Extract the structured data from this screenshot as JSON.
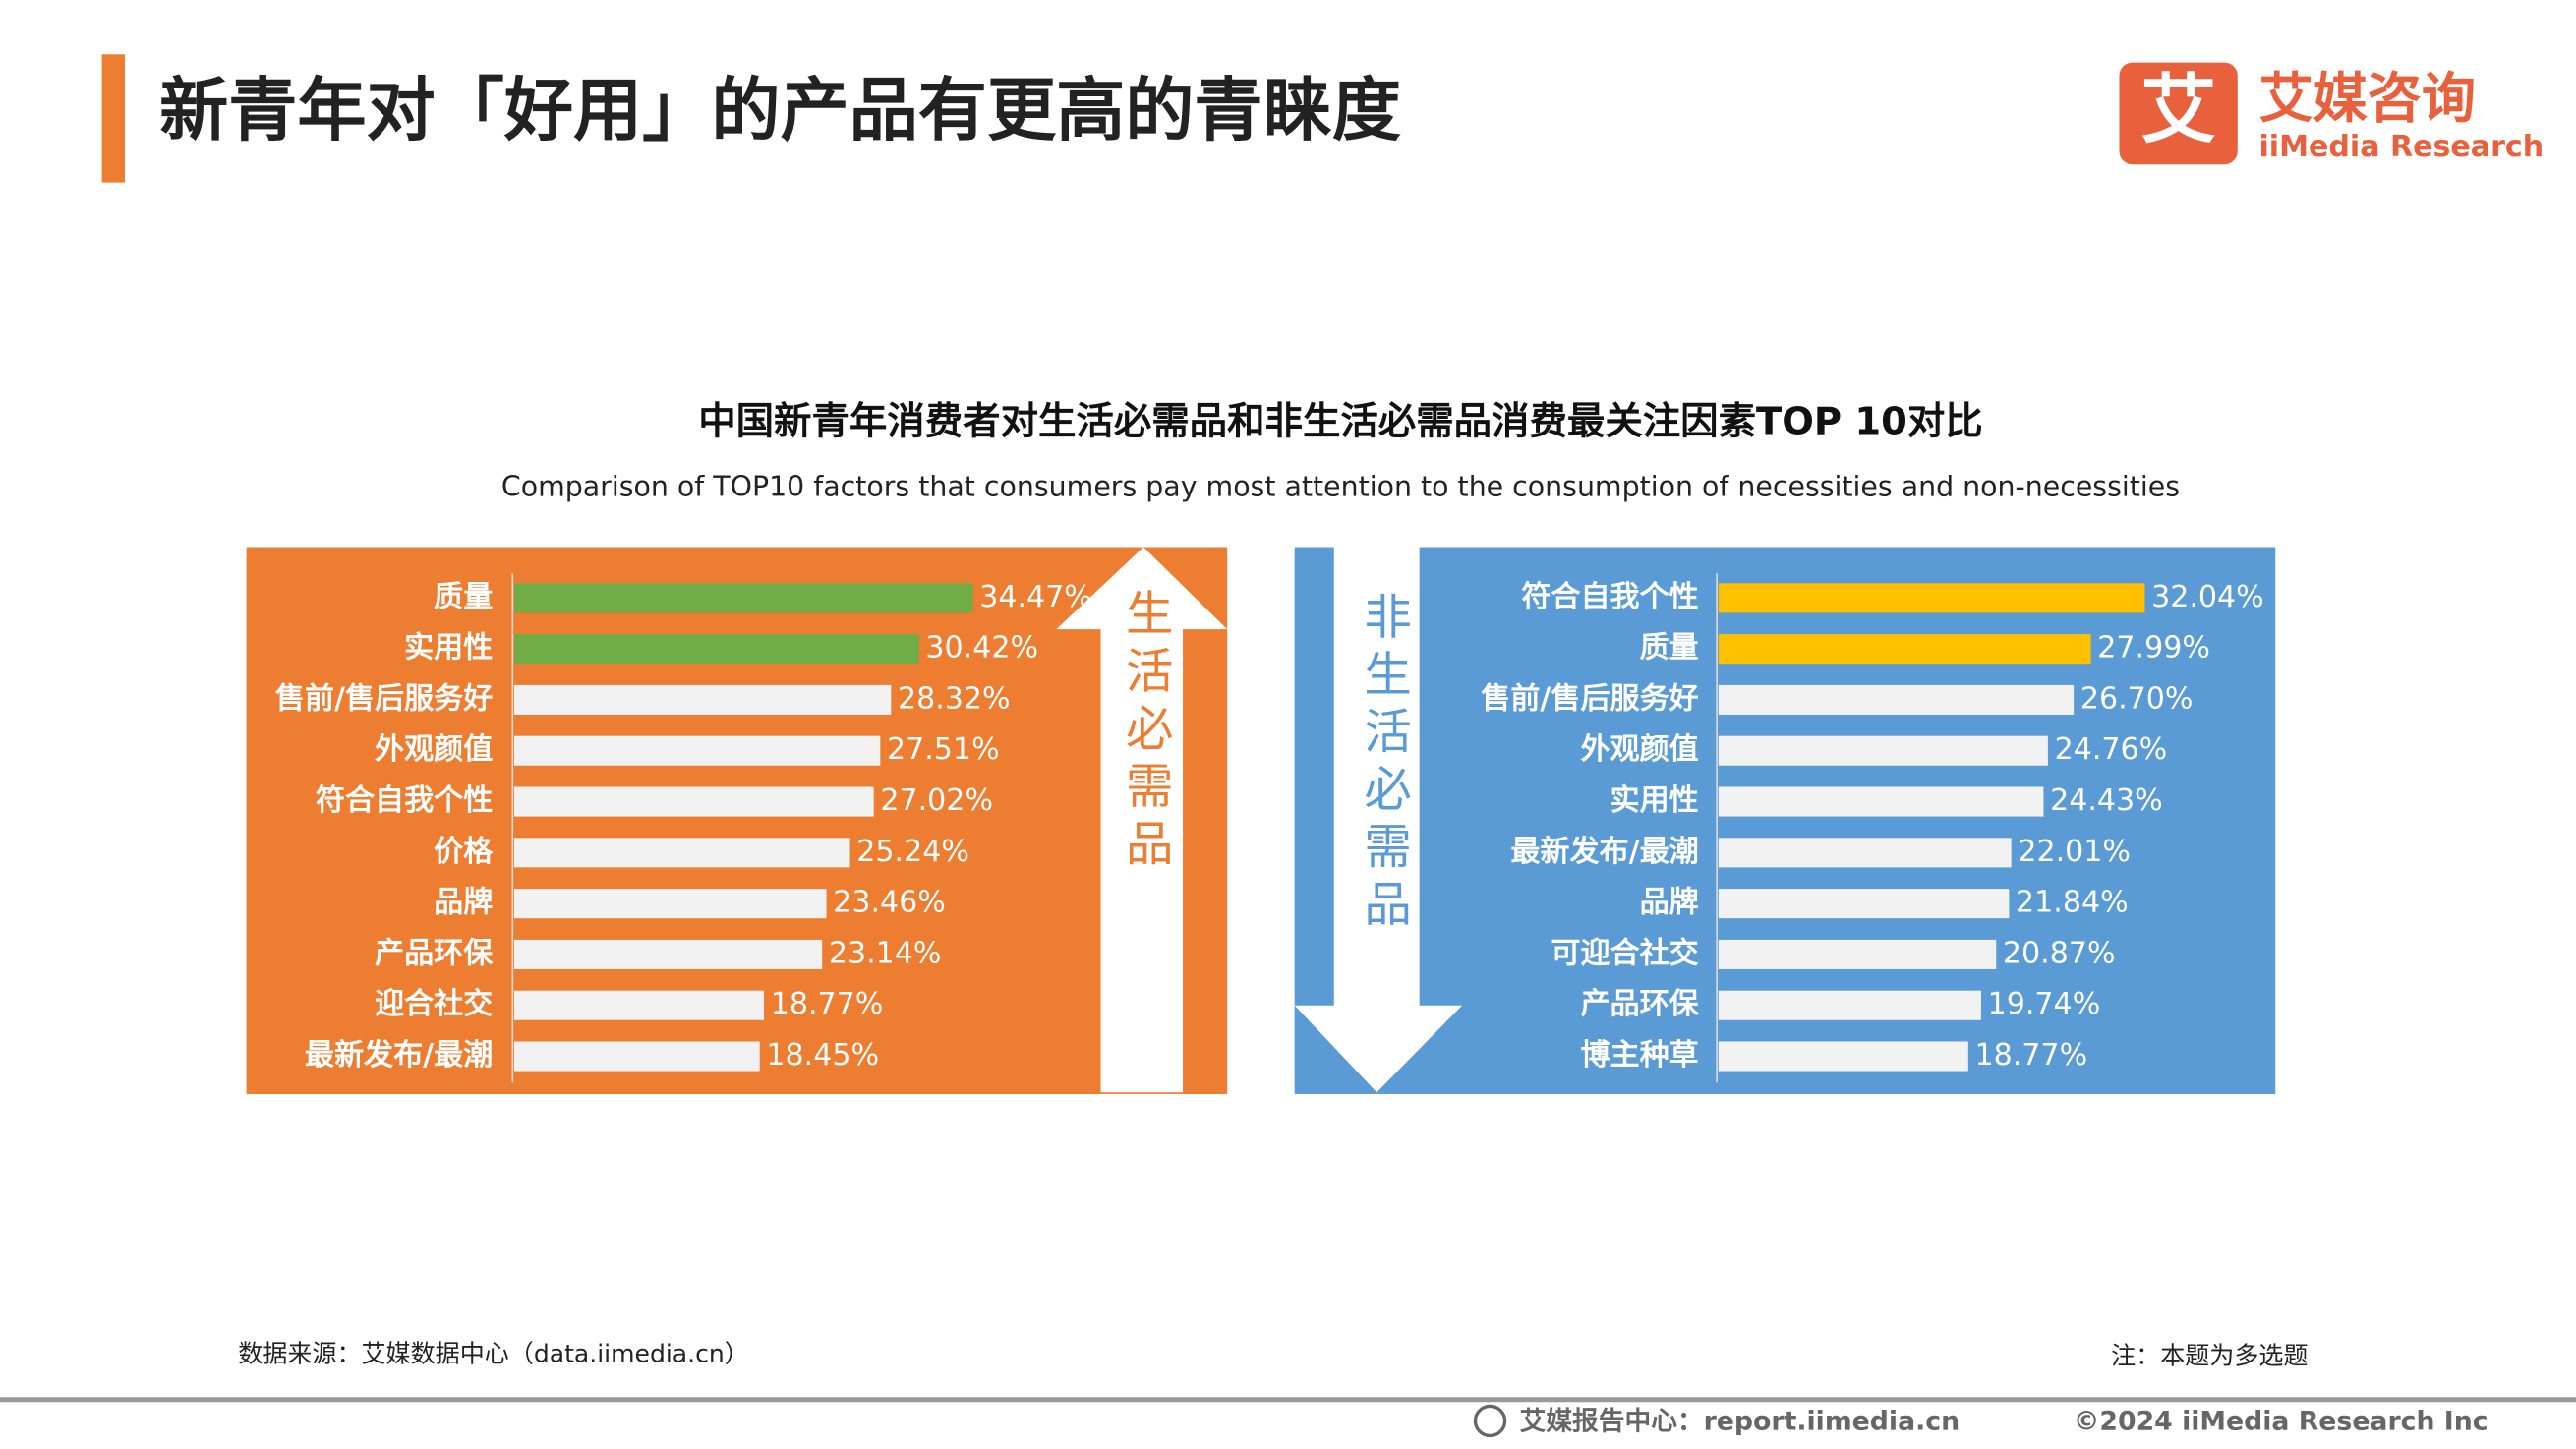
{
  "header": {
    "title": "新青年对「好用」的产品有更高的青睐度",
    "logo_cn": "艾媒咨询",
    "logo_en": "iiMedia Research",
    "logo_mark": "艾"
  },
  "chart_header": {
    "title": "中国新青年消费者对生活必需品和非生活必需品消费最关注因素TOP 10对比",
    "subtitle": "Comparison of TOP10 factors that consumers pay most attention to the consumption of necessities and non-necessities"
  },
  "chart_data": [
    {
      "type": "bar",
      "orientation": "horizontal",
      "side_label": "生活必需品",
      "panel_color": "#ed7d31",
      "arrow": "up",
      "categories": [
        "质量",
        "实用性",
        "售前/售后服务好",
        "外观颜值",
        "符合自我个性",
        "价格",
        "品牌",
        "产品环保",
        "迎合社交",
        "最新发布/最潮"
      ],
      "values": [
        34.47,
        30.42,
        28.32,
        27.51,
        27.02,
        25.24,
        23.46,
        23.14,
        18.77,
        18.45
      ],
      "value_labels": [
        "34.47%",
        "30.42%",
        "28.32%",
        "27.51%",
        "27.02%",
        "25.24%",
        "23.46%",
        "23.14%",
        "18.77%",
        "18.45%"
      ],
      "colors": [
        "#70ad47",
        "#70ad47",
        "#f2f2f2",
        "#f2f2f2",
        "#f2f2f2",
        "#f2f2f2",
        "#f2f2f2",
        "#f2f2f2",
        "#f2f2f2",
        "#f2f2f2"
      ]
    },
    {
      "type": "bar",
      "orientation": "horizontal",
      "side_label": "非生活必需品",
      "panel_color": "#5b9bd5",
      "arrow": "down",
      "categories": [
        "符合自我个性",
        "质量",
        "售前/售后服务好",
        "外观颜值",
        "实用性",
        "最新发布/最潮",
        "品牌",
        "可迎合社交",
        "产品环保",
        "博主种草"
      ],
      "values": [
        32.04,
        27.99,
        26.7,
        24.76,
        24.43,
        22.01,
        21.84,
        20.87,
        19.74,
        18.77
      ],
      "value_labels": [
        "32.04%",
        "27.99%",
        "26.70%",
        "24.76%",
        "24.43%",
        "22.01%",
        "21.84%",
        "20.87%",
        "19.74%",
        "18.77%"
      ],
      "colors": [
        "#ffc000",
        "#ffc000",
        "#f2f2f2",
        "#f2f2f2",
        "#f2f2f2",
        "#f2f2f2",
        "#f2f2f2",
        "#f2f2f2",
        "#f2f2f2",
        "#f2f2f2"
      ]
    }
  ],
  "footer": {
    "source": "数据来源：艾媒数据中心（data.iimedia.cn）",
    "note": "注：本题为多选题",
    "site": "艾媒报告中心：report.iimedia.cn",
    "copyright": "©2024  iiMedia Research  Inc"
  }
}
